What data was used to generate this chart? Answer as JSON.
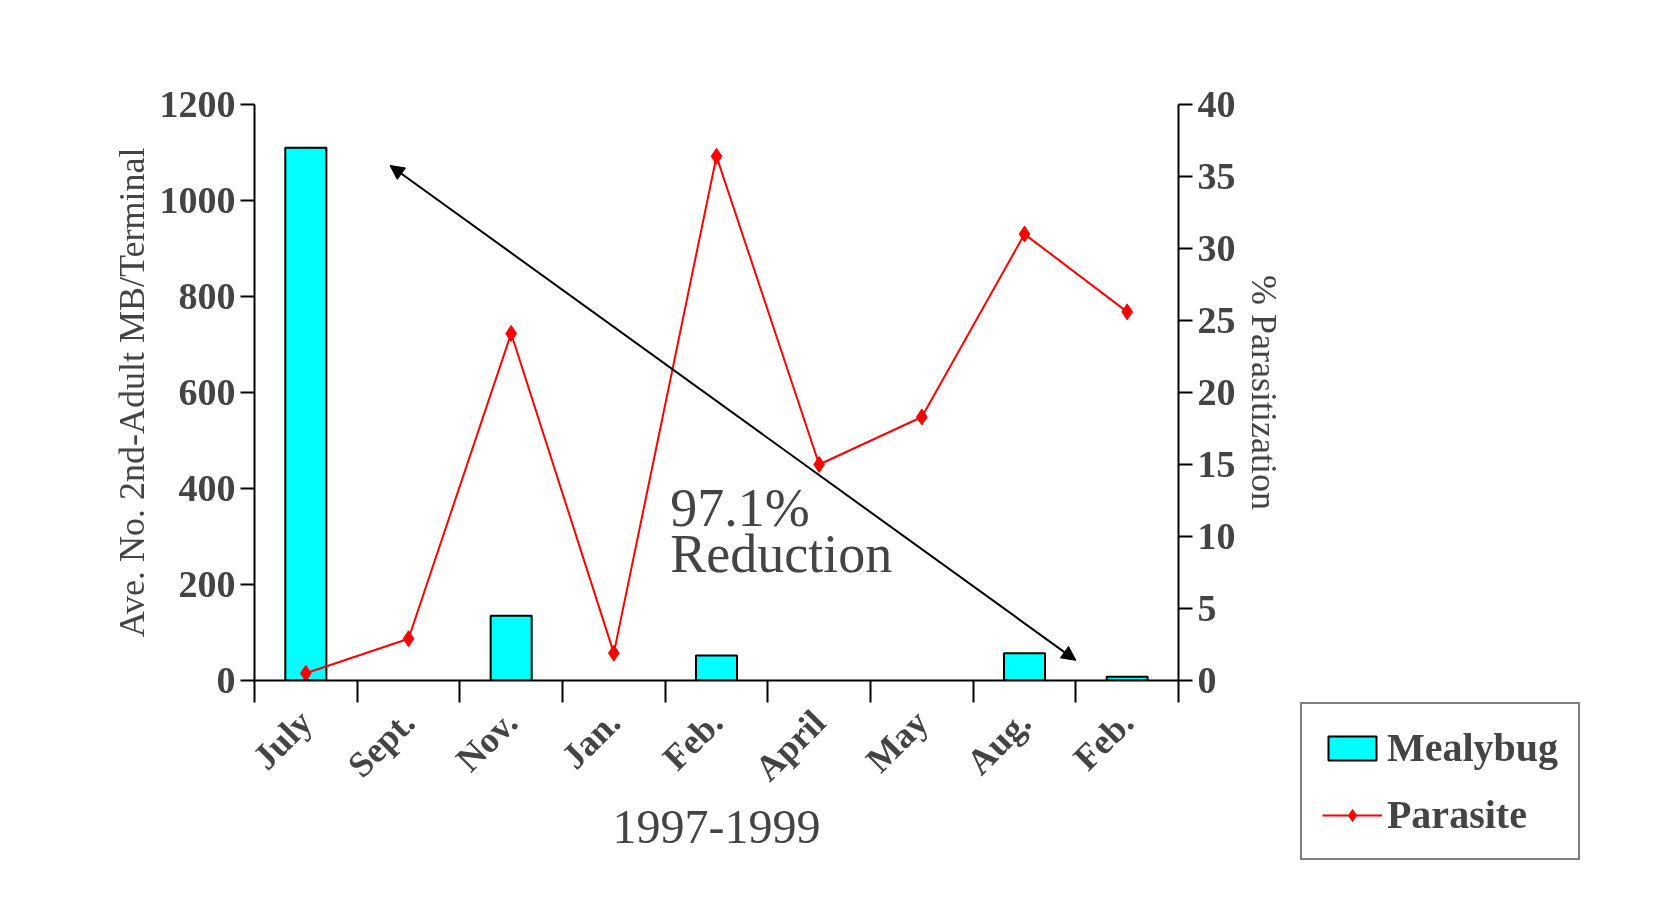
{
  "chart_data": {
    "type": "bar",
    "categories": [
      "July",
      "Sept.",
      "Nov.",
      "Jan.",
      "Feb.",
      "April",
      "May",
      "Aug.",
      "Feb."
    ],
    "xlabel": "1997-1999",
    "ylabel": "Ave. No. 2nd-Adult MB/Terminal",
    "y2label": "% Parasitization",
    "series": [
      {
        "name": "Mealybug",
        "color": "#00ffff",
        "values": [
          1110,
          null,
          135,
          null,
          52,
          null,
          null,
          57,
          8
        ]
      },
      {
        "name": "Parasite",
        "type": "line",
        "axis": "y2",
        "color": "#ff0000",
        "marker": "diamond",
        "values": [
          0.5,
          2.9,
          24.1,
          1.9,
          36.4,
          15.0,
          18.3,
          31.0,
          25.6
        ]
      }
    ],
    "ylim": [
      0,
      1200
    ],
    "yticks": [
      0,
      200,
      400,
      600,
      800,
      1000,
      1200
    ],
    "y2lim": [
      0,
      40
    ],
    "y2ticks": [
      0,
      5,
      10,
      15,
      20,
      25,
      30,
      35,
      40
    ],
    "annotations": [
      "97.1%\nReduction"
    ],
    "legend": "bottom right",
    "grid": false
  }
}
